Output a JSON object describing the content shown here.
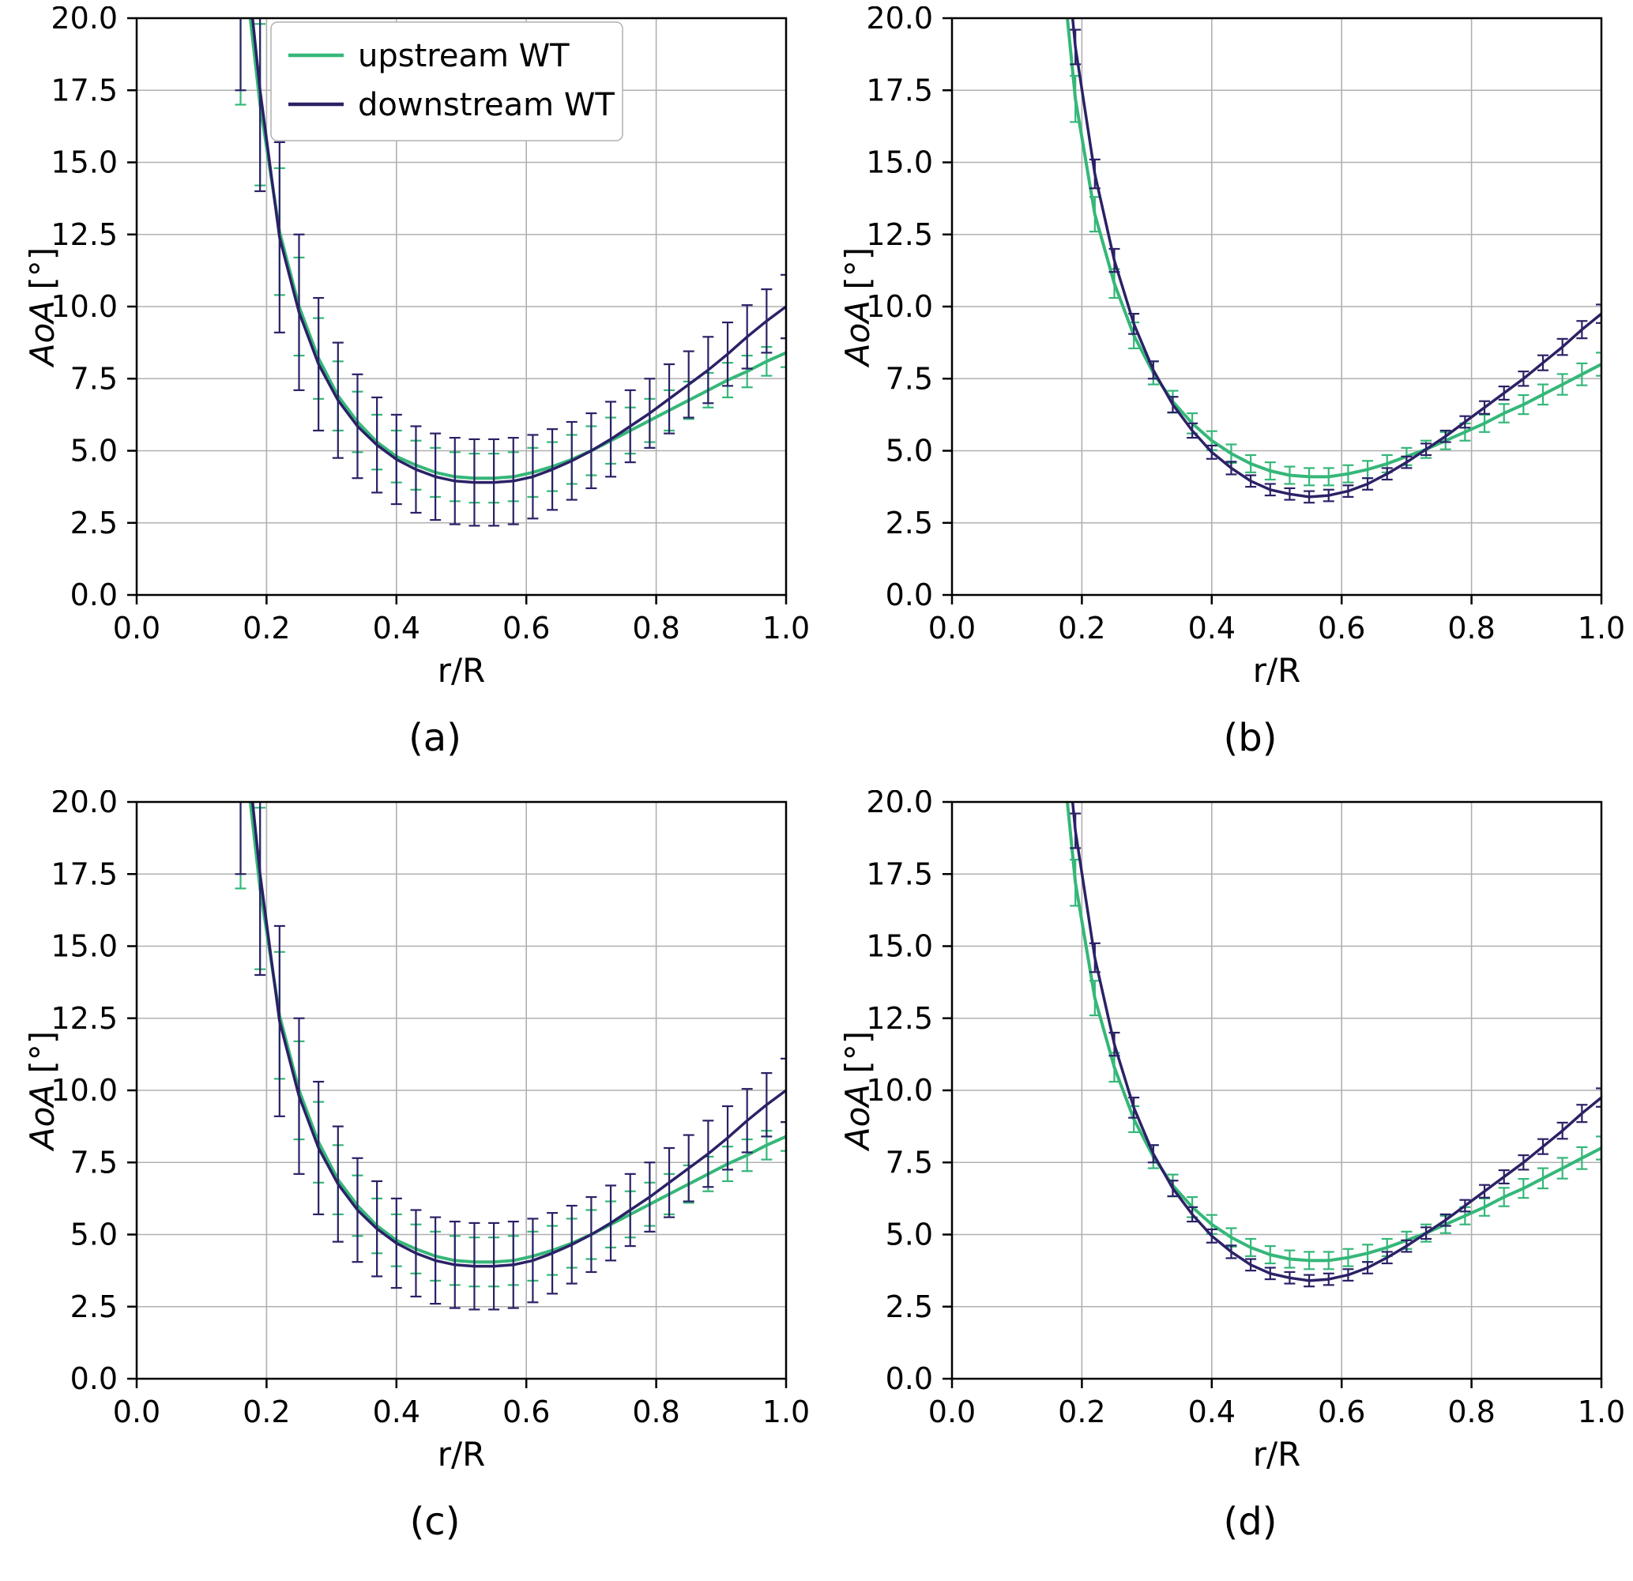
{
  "style": {
    "background": "#ffffff",
    "grid_color": "#b0b0b0",
    "axis_color": "#000000",
    "text_color": "#000000",
    "legend_border_color": "#b0b0b0",
    "upstream_color": "#35b779",
    "downstream_color": "#2b2166"
  },
  "legend": {
    "entries": [
      {
        "label": "upstream WT",
        "color": "#35b779"
      },
      {
        "label": "downstream WT",
        "color": "#2b2166"
      }
    ]
  },
  "axes": {
    "xlabel": "r/R",
    "ylabel_italic": "AoA",
    "ylabel_unit": " [°]",
    "xlim": [
      0.0,
      1.0
    ],
    "ylim": [
      0.0,
      20.0
    ],
    "xticks": [
      0.0,
      0.2,
      0.4,
      0.6,
      0.8,
      1.0
    ],
    "xtick_labels": [
      "0.0",
      "0.2",
      "0.4",
      "0.6",
      "0.8",
      "1.0"
    ],
    "yticks": [
      0.0,
      2.5,
      5.0,
      7.5,
      10.0,
      12.5,
      15.0,
      17.5,
      20.0
    ],
    "ytick_labels": [
      "0.0",
      "2.5",
      "5.0",
      "7.5",
      "10.0",
      "12.5",
      "15.0",
      "17.5",
      "20.0"
    ],
    "grid": true,
    "legend_position": "upper center-left"
  },
  "chart_data": [
    {
      "id": "a",
      "caption": "(a)",
      "type": "line",
      "show_legend": true,
      "x": [
        0.16,
        0.19,
        0.22,
        0.25,
        0.28,
        0.31,
        0.34,
        0.37,
        0.4,
        0.43,
        0.46,
        0.49,
        0.52,
        0.55,
        0.58,
        0.61,
        0.64,
        0.67,
        0.7,
        0.73,
        0.76,
        0.79,
        0.82,
        0.85,
        0.88,
        0.91,
        0.94,
        0.97,
        1.0
      ],
      "series": [
        {
          "name": "upstream WT",
          "color": "#35b779",
          "y": [
            23.0,
            17.0,
            12.6,
            10.0,
            8.2,
            6.9,
            6.0,
            5.3,
            4.8,
            4.5,
            4.25,
            4.1,
            4.05,
            4.05,
            4.1,
            4.25,
            4.45,
            4.7,
            5.0,
            5.35,
            5.7,
            6.05,
            6.4,
            6.75,
            7.1,
            7.45,
            7.75,
            8.1,
            8.4
          ],
          "yerr": [
            6.0,
            2.8,
            2.2,
            1.7,
            1.4,
            1.2,
            1.05,
            0.95,
            0.9,
            0.85,
            0.85,
            0.85,
            0.85,
            0.85,
            0.85,
            0.85,
            0.85,
            0.85,
            0.85,
            0.8,
            0.8,
            0.75,
            0.7,
            0.65,
            0.6,
            0.6,
            0.55,
            0.5,
            0.5
          ]
        },
        {
          "name": "downstream WT",
          "color": "#2b2166",
          "y": [
            24.0,
            17.5,
            12.4,
            9.8,
            8.0,
            6.75,
            5.85,
            5.2,
            4.7,
            4.35,
            4.1,
            3.95,
            3.9,
            3.9,
            3.95,
            4.1,
            4.35,
            4.65,
            5.0,
            5.4,
            5.85,
            6.3,
            6.8,
            7.3,
            7.8,
            8.35,
            8.95,
            9.5,
            10.0
          ],
          "yerr": [
            6.5,
            3.5,
            3.3,
            2.7,
            2.3,
            2.0,
            1.8,
            1.65,
            1.55,
            1.5,
            1.5,
            1.5,
            1.5,
            1.5,
            1.5,
            1.45,
            1.4,
            1.35,
            1.3,
            1.3,
            1.25,
            1.2,
            1.2,
            1.15,
            1.15,
            1.1,
            1.1,
            1.1,
            1.1
          ]
        }
      ]
    },
    {
      "id": "b",
      "caption": "(b)",
      "type": "line",
      "show_legend": false,
      "x": [
        0.16,
        0.19,
        0.22,
        0.25,
        0.28,
        0.31,
        0.34,
        0.37,
        0.4,
        0.43,
        0.46,
        0.49,
        0.52,
        0.55,
        0.58,
        0.61,
        0.64,
        0.67,
        0.7,
        0.73,
        0.76,
        0.79,
        0.82,
        0.85,
        0.88,
        0.91,
        0.94,
        0.97,
        1.0
      ],
      "series": [
        {
          "name": "upstream WT",
          "color": "#35b779",
          "y": [
            24.0,
            17.2,
            13.2,
            10.8,
            9.0,
            7.7,
            6.7,
            5.95,
            5.35,
            4.9,
            4.55,
            4.3,
            4.15,
            4.1,
            4.1,
            4.2,
            4.35,
            4.55,
            4.8,
            5.05,
            5.35,
            5.65,
            5.95,
            6.3,
            6.6,
            6.95,
            7.3,
            7.65,
            8.0
          ],
          "yerr": [
            1.0,
            0.8,
            0.6,
            0.5,
            0.45,
            0.4,
            0.38,
            0.35,
            0.33,
            0.32,
            0.3,
            0.3,
            0.3,
            0.3,
            0.3,
            0.3,
            0.3,
            0.3,
            0.3,
            0.3,
            0.3,
            0.3,
            0.3,
            0.32,
            0.33,
            0.35,
            0.36,
            0.38,
            0.4
          ]
        },
        {
          "name": "downstream WT",
          "color": "#2b2166",
          "y": [
            26.0,
            19.0,
            14.6,
            11.6,
            9.4,
            7.8,
            6.6,
            5.7,
            4.95,
            4.4,
            3.95,
            3.65,
            3.5,
            3.4,
            3.45,
            3.6,
            3.85,
            4.2,
            4.6,
            5.05,
            5.5,
            6.0,
            6.5,
            7.0,
            7.5,
            8.05,
            8.6,
            9.2,
            9.75
          ],
          "yerr": [
            0.8,
            0.6,
            0.5,
            0.4,
            0.35,
            0.3,
            0.27,
            0.25,
            0.23,
            0.22,
            0.2,
            0.2,
            0.2,
            0.2,
            0.2,
            0.2,
            0.2,
            0.2,
            0.2,
            0.2,
            0.2,
            0.2,
            0.22,
            0.23,
            0.25,
            0.26,
            0.28,
            0.3,
            0.32
          ]
        }
      ]
    },
    {
      "id": "c",
      "caption": "(c)",
      "type": "line",
      "show_legend": false,
      "x": [
        0.16,
        0.19,
        0.22,
        0.25,
        0.28,
        0.31,
        0.34,
        0.37,
        0.4,
        0.43,
        0.46,
        0.49,
        0.52,
        0.55,
        0.58,
        0.61,
        0.64,
        0.67,
        0.7,
        0.73,
        0.76,
        0.79,
        0.82,
        0.85,
        0.88,
        0.91,
        0.94,
        0.97,
        1.0
      ],
      "series": [
        {
          "name": "upstream WT",
          "color": "#35b779",
          "y": [
            23.0,
            17.0,
            12.6,
            10.0,
            8.2,
            6.9,
            6.0,
            5.3,
            4.8,
            4.5,
            4.25,
            4.1,
            4.05,
            4.05,
            4.1,
            4.25,
            4.45,
            4.7,
            5.0,
            5.35,
            5.7,
            6.05,
            6.4,
            6.75,
            7.1,
            7.45,
            7.75,
            8.1,
            8.4
          ],
          "yerr": [
            6.0,
            2.8,
            2.2,
            1.7,
            1.4,
            1.2,
            1.05,
            0.95,
            0.9,
            0.85,
            0.85,
            0.85,
            0.85,
            0.85,
            0.85,
            0.85,
            0.85,
            0.85,
            0.85,
            0.8,
            0.8,
            0.75,
            0.7,
            0.65,
            0.6,
            0.6,
            0.55,
            0.5,
            0.5
          ]
        },
        {
          "name": "downstream WT",
          "color": "#2b2166",
          "y": [
            24.0,
            17.5,
            12.4,
            9.8,
            8.0,
            6.75,
            5.85,
            5.2,
            4.7,
            4.35,
            4.1,
            3.95,
            3.9,
            3.9,
            3.95,
            4.1,
            4.35,
            4.65,
            5.0,
            5.4,
            5.85,
            6.3,
            6.8,
            7.3,
            7.8,
            8.35,
            8.95,
            9.5,
            10.0
          ],
          "yerr": [
            6.5,
            3.5,
            3.3,
            2.7,
            2.3,
            2.0,
            1.8,
            1.65,
            1.55,
            1.5,
            1.5,
            1.5,
            1.5,
            1.5,
            1.5,
            1.45,
            1.4,
            1.35,
            1.3,
            1.3,
            1.25,
            1.2,
            1.2,
            1.15,
            1.15,
            1.1,
            1.1,
            1.1,
            1.1
          ]
        }
      ]
    },
    {
      "id": "d",
      "caption": "(d)",
      "type": "line",
      "show_legend": false,
      "x": [
        0.16,
        0.19,
        0.22,
        0.25,
        0.28,
        0.31,
        0.34,
        0.37,
        0.4,
        0.43,
        0.46,
        0.49,
        0.52,
        0.55,
        0.58,
        0.61,
        0.64,
        0.67,
        0.7,
        0.73,
        0.76,
        0.79,
        0.82,
        0.85,
        0.88,
        0.91,
        0.94,
        0.97,
        1.0
      ],
      "series": [
        {
          "name": "upstream WT",
          "color": "#35b779",
          "y": [
            24.0,
            17.2,
            13.2,
            10.8,
            9.0,
            7.7,
            6.7,
            5.95,
            5.35,
            4.9,
            4.55,
            4.3,
            4.15,
            4.1,
            4.1,
            4.2,
            4.35,
            4.55,
            4.8,
            5.05,
            5.35,
            5.65,
            5.95,
            6.3,
            6.6,
            6.95,
            7.3,
            7.65,
            8.0
          ],
          "yerr": [
            1.0,
            0.8,
            0.6,
            0.5,
            0.45,
            0.4,
            0.38,
            0.35,
            0.33,
            0.32,
            0.3,
            0.3,
            0.3,
            0.3,
            0.3,
            0.3,
            0.3,
            0.3,
            0.3,
            0.3,
            0.3,
            0.3,
            0.3,
            0.32,
            0.33,
            0.35,
            0.36,
            0.38,
            0.4
          ]
        },
        {
          "name": "downstream WT",
          "color": "#2b2166",
          "y": [
            26.0,
            19.0,
            14.6,
            11.6,
            9.4,
            7.8,
            6.6,
            5.7,
            4.95,
            4.4,
            3.95,
            3.65,
            3.5,
            3.4,
            3.45,
            3.6,
            3.85,
            4.2,
            4.6,
            5.05,
            5.5,
            6.0,
            6.5,
            7.0,
            7.5,
            8.05,
            8.6,
            9.2,
            9.75
          ],
          "yerr": [
            0.8,
            0.6,
            0.5,
            0.4,
            0.35,
            0.3,
            0.27,
            0.25,
            0.23,
            0.22,
            0.2,
            0.2,
            0.2,
            0.2,
            0.2,
            0.2,
            0.2,
            0.2,
            0.2,
            0.2,
            0.2,
            0.2,
            0.22,
            0.23,
            0.25,
            0.26,
            0.28,
            0.3,
            0.32
          ]
        }
      ]
    }
  ]
}
